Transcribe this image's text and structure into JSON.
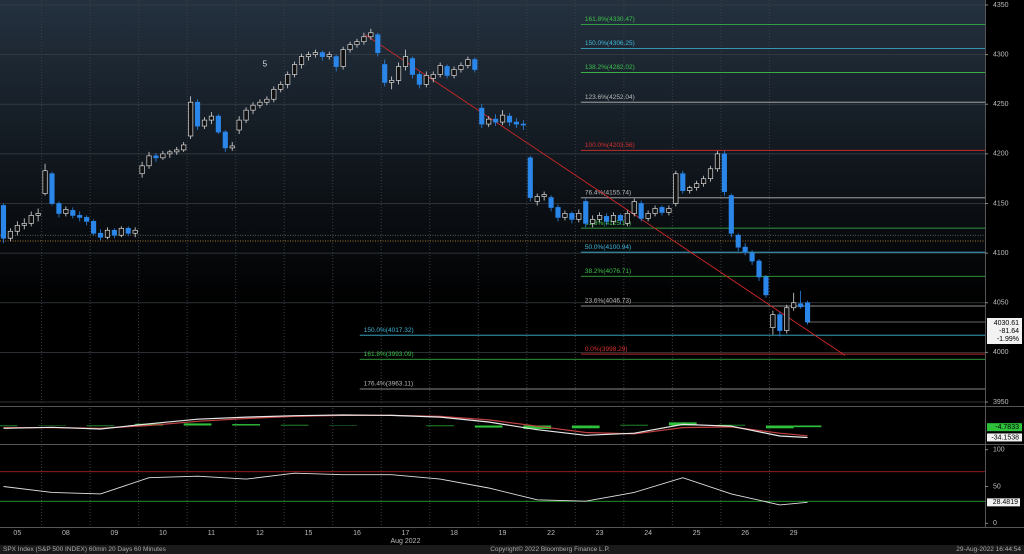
{
  "chart_data": {
    "type": "candlestick",
    "title": "SPX Index (S&P 500 INDEX) 60min 20 Days 60 Minutes",
    "source": "Copyright© 2022 Bloomberg Finance L.P.",
    "timestamp": "29-Aug-2022 16:44:54",
    "x_sublabel": "Aug 2022",
    "xlim": [
      -0.5,
      141.6
    ],
    "xticks": [
      {
        "value": 2,
        "label": "05"
      },
      {
        "value": 9,
        "label": "08"
      },
      {
        "value": 16,
        "label": "09"
      },
      {
        "value": 23,
        "label": "10"
      },
      {
        "value": 30,
        "label": "11"
      },
      {
        "value": 37,
        "label": "12"
      },
      {
        "value": 44,
        "label": "15"
      },
      {
        "value": 51,
        "label": "16"
      },
      {
        "value": 58,
        "label": "17"
      },
      {
        "value": 65,
        "label": "18"
      },
      {
        "value": 72,
        "label": "19"
      },
      {
        "value": 79,
        "label": "22"
      },
      {
        "value": 86,
        "label": "23"
      },
      {
        "value": 93,
        "label": "24"
      },
      {
        "value": 100,
        "label": "25"
      },
      {
        "value": 107,
        "label": "26"
      },
      {
        "value": 114,
        "label": "29"
      }
    ],
    "ylim": [
      3947,
      4355
    ],
    "yticks": [
      3950,
      4000,
      4050,
      4100,
      4150,
      4200,
      4250,
      4300,
      4350
    ],
    "grid": true,
    "up_color": "#d8d8d8",
    "down_color": "#2a86e8",
    "x": [
      0,
      1,
      2,
      3,
      4,
      5,
      6,
      7,
      8,
      9,
      10,
      11,
      12,
      13,
      14,
      15,
      16,
      17,
      18,
      19,
      20,
      21,
      22,
      23,
      24,
      25,
      26,
      27,
      28,
      29,
      30,
      31,
      32,
      33,
      34,
      35,
      36,
      37,
      38,
      39,
      40,
      41,
      42,
      43,
      44,
      45,
      46,
      47,
      48,
      49,
      50,
      51,
      52,
      53,
      54,
      55,
      56,
      57,
      58,
      59,
      60,
      61,
      62,
      63,
      64,
      65,
      66,
      67,
      68,
      69,
      70,
      71,
      72,
      73,
      74,
      75,
      76,
      77,
      78,
      79,
      80,
      81,
      82,
      83,
      84,
      85,
      86,
      87,
      88,
      89,
      90,
      91,
      92,
      93,
      94,
      95,
      96,
      97,
      98,
      99,
      100,
      101,
      102,
      103,
      104,
      105,
      106,
      107,
      108,
      109,
      110,
      111,
      112,
      113,
      114,
      115,
      116
    ],
    "ohlc": [
      [
        4148,
        4150,
        4110,
        4115
      ],
      [
        4115,
        4125,
        4112,
        4122
      ],
      [
        4122,
        4132,
        4118,
        4128
      ],
      [
        4128,
        4135,
        4124,
        4130
      ],
      [
        4130,
        4142,
        4127,
        4138
      ],
      [
        4138,
        4145,
        4132,
        4140
      ],
      [
        4160,
        4190,
        4158,
        4183
      ],
      [
        4180,
        4182,
        4148,
        4150
      ],
      [
        4150,
        4152,
        4136,
        4140
      ],
      [
        4140,
        4147,
        4137,
        4144
      ],
      [
        4143,
        4146,
        4135,
        4138
      ],
      [
        4138,
        4142,
        4132,
        4136
      ],
      [
        4136,
        4138,
        4128,
        4132
      ],
      [
        4132,
        4134,
        4118,
        4120
      ],
      [
        4120,
        4124,
        4113,
        4116
      ],
      [
        4116,
        4126,
        4114,
        4123
      ],
      [
        4123,
        4125,
        4115,
        4118
      ],
      [
        4118,
        4127,
        4116,
        4125
      ],
      [
        4125,
        4127,
        4117,
        4120
      ],
      [
        4120,
        4126,
        4116,
        4123
      ],
      [
        4180,
        4192,
        4176,
        4188
      ],
      [
        4188,
        4202,
        4185,
        4198
      ],
      [
        4198,
        4201,
        4192,
        4196
      ],
      [
        4196,
        4203,
        4194,
        4200
      ],
      [
        4200,
        4204,
        4196,
        4202
      ],
      [
        4202,
        4207,
        4199,
        4204
      ],
      [
        4204,
        4212,
        4202,
        4209
      ],
      [
        4218,
        4258,
        4215,
        4252
      ],
      [
        4252,
        4255,
        4224,
        4228
      ],
      [
        4228,
        4237,
        4225,
        4234
      ],
      [
        4234,
        4242,
        4230,
        4238
      ],
      [
        4238,
        4240,
        4220,
        4222
      ],
      [
        4222,
        4224,
        4202,
        4206
      ],
      [
        4206,
        4212,
        4203,
        4208
      ],
      [
        4224,
        4238,
        4220,
        4234
      ],
      [
        4234,
        4247,
        4231,
        4244
      ],
      [
        4244,
        4252,
        4240,
        4249
      ],
      [
        4249,
        4255,
        4246,
        4252
      ],
      [
        4252,
        4258,
        4249,
        4255
      ],
      [
        4255,
        4268,
        4252,
        4265
      ],
      [
        4265,
        4273,
        4262,
        4270
      ],
      [
        4270,
        4283,
        4266,
        4280
      ],
      [
        4280,
        4293,
        4277,
        4290
      ],
      [
        4290,
        4301,
        4286,
        4298
      ],
      [
        4298,
        4303,
        4294,
        4300
      ],
      [
        4300,
        4305,
        4297,
        4302
      ],
      [
        4302,
        4304,
        4294,
        4298
      ],
      [
        4298,
        4303,
        4295,
        4300
      ],
      [
        4298,
        4300,
        4283,
        4288
      ],
      [
        4288,
        4308,
        4285,
        4305
      ],
      [
        4305,
        4313,
        4302,
        4310
      ],
      [
        4310,
        4316,
        4307,
        4313
      ],
      [
        4313,
        4322,
        4310,
        4318
      ],
      [
        4318,
        4326,
        4315,
        4322
      ],
      [
        4320,
        4322,
        4298,
        4302
      ],
      [
        4290,
        4295,
        4268,
        4272
      ],
      [
        4272,
        4278,
        4265,
        4274
      ],
      [
        4274,
        4292,
        4270,
        4288
      ],
      [
        4288,
        4305,
        4284,
        4298
      ],
      [
        4296,
        4298,
        4276,
        4280
      ],
      [
        4280,
        4283,
        4266,
        4270
      ],
      [
        4270,
        4283,
        4267,
        4279
      ],
      [
        4276,
        4283,
        4272,
        4280
      ],
      [
        4280,
        4292,
        4277,
        4289
      ],
      [
        4288,
        4290,
        4276,
        4279
      ],
      [
        4279,
        4288,
        4276,
        4285
      ],
      [
        4285,
        4292,
        4282,
        4289
      ],
      [
        4289,
        4298,
        4286,
        4295
      ],
      [
        4295,
        4297,
        4282,
        4285
      ],
      [
        4246,
        4250,
        4226,
        4230
      ],
      [
        4230,
        4238,
        4227,
        4235
      ],
      [
        4235,
        4240,
        4228,
        4232
      ],
      [
        4232,
        4244,
        4229,
        4239
      ],
      [
        4238,
        4241,
        4228,
        4232
      ],
      [
        4232,
        4236,
        4226,
        4230
      ],
      [
        4230,
        4234,
        4224,
        4229
      ],
      [
        4196,
        4198,
        4152,
        4156
      ],
      [
        4152,
        4160,
        4148,
        4157
      ],
      [
        4157,
        4162,
        4153,
        4159
      ],
      [
        4156,
        4158,
        4142,
        4146
      ],
      [
        4146,
        4149,
        4132,
        4136
      ],
      [
        4136,
        4143,
        4133,
        4140
      ],
      [
        4140,
        4142,
        4130,
        4134
      ],
      [
        4134,
        4144,
        4131,
        4140
      ],
      [
        4152,
        4155,
        4126,
        4130
      ],
      [
        4130,
        4138,
        4126,
        4134
      ],
      [
        4134,
        4141,
        4131,
        4138
      ],
      [
        4137,
        4140,
        4128,
        4132
      ],
      [
        4132,
        4141,
        4129,
        4138
      ],
      [
        4138,
        4140,
        4129,
        4133
      ],
      [
        4130,
        4143,
        4127,
        4140
      ],
      [
        4140,
        4155,
        4137,
        4152
      ],
      [
        4150,
        4153,
        4132,
        4135
      ],
      [
        4135,
        4143,
        4132,
        4140
      ],
      [
        4140,
        4148,
        4137,
        4145
      ],
      [
        4146,
        4148,
        4138,
        4141
      ],
      [
        4141,
        4148,
        4138,
        4145
      ],
      [
        4150,
        4183,
        4147,
        4180
      ],
      [
        4180,
        4183,
        4160,
        4163
      ],
      [
        4163,
        4168,
        4160,
        4166
      ],
      [
        4166,
        4173,
        4163,
        4170
      ],
      [
        4170,
        4178,
        4167,
        4175
      ],
      [
        4175,
        4188,
        4172,
        4185
      ],
      [
        4185,
        4203,
        4182,
        4200
      ],
      [
        4200,
        4203,
        4158,
        4162
      ],
      [
        4158,
        4160,
        4116,
        4120
      ],
      [
        4118,
        4120,
        4102,
        4106
      ],
      [
        4106,
        4110,
        4098,
        4101
      ],
      [
        4100,
        4103,
        4088,
        4092
      ],
      [
        4092,
        4094,
        4072,
        4076
      ],
      [
        4076,
        4078,
        4055,
        4058
      ],
      [
        4025,
        4042,
        4018,
        4038
      ],
      [
        4038,
        4041,
        4016,
        4022
      ],
      [
        4022,
        4048,
        4019,
        4045
      ],
      [
        4045,
        4060,
        4042,
        4050
      ],
      [
        4049,
        4062,
        4044,
        4046
      ],
      [
        4050,
        4052,
        4028,
        4030.61
      ]
    ],
    "change": -81.64,
    "change_pct": {
      "value": -1.99,
      "label": "-1.99%"
    },
    "fib_levels": [
      {
        "value": 4330.47,
        "label": "161.8%(4330.47)",
        "color": "#3cc24a",
        "start": 83.3
      },
      {
        "value": 4306.25,
        "label": "150.0%(4306.25)",
        "color": "#3fb8d8",
        "start": 83.3
      },
      {
        "value": 4282.02,
        "label": "138.2%(4282.02)",
        "color": "#3cc24a",
        "start": 83.3
      },
      {
        "value": 4252.04,
        "label": "123.6%(4252.04)",
        "color": "#b8b8b8",
        "start": 83.3
      },
      {
        "value": 4203.56,
        "label": "100.0%(4203.56)",
        "color": "#d83030",
        "start": 83.3
      },
      {
        "value": 4155.74,
        "label": "76.4%(4155.74)",
        "color": "#b8b8b8",
        "start": 83.3
      },
      {
        "value": 4125.17,
        "label": "61.8%(4125.17)",
        "color": "#3cc24a",
        "start": 83.3
      },
      {
        "value": 4100.94,
        "label": "50.0%(4100.94)",
        "color": "#3fb8d8",
        "start": 83.3
      },
      {
        "value": 4076.71,
        "label": "38.2%(4076.71)",
        "color": "#3cc24a",
        "start": 83.3
      },
      {
        "value": 4046.73,
        "label": "23.6%(4046.73)",
        "color": "#b8b8b8",
        "start": 83.3
      },
      {
        "value": 3998.29,
        "label": "0.0%(3998.29)",
        "color": "#d83030",
        "start": 83.3
      },
      {
        "value": 4017.32,
        "label": "150.0%(4017.32)",
        "color": "#3fb8d8",
        "start": 51.4
      },
      {
        "value": 3993.09,
        "label": "161.8%(3993.09)",
        "color": "#3cc24a",
        "start": 51.4
      },
      {
        "value": 3963.11,
        "label": "176.4%(3963.11)",
        "color": "#b8b8b8",
        "start": 51.4
      }
    ],
    "ref_lines": [
      {
        "value": 4112.25,
        "color": "#e09a30"
      },
      {
        "value": 4118,
        "color": "#777777"
      }
    ],
    "trendline": {
      "x": [
        52.2,
        121.4
      ],
      "y": [
        4320,
        3997
      ],
      "color": "#d02828"
    },
    "annotations": [
      {
        "x": 37.7,
        "y": 4290,
        "text": "5"
      }
    ],
    "macd": {
      "x": [
        0,
        7,
        14,
        21,
        28,
        35,
        42,
        49,
        56,
        63,
        70,
        77,
        84,
        91,
        98,
        105,
        112,
        116
      ],
      "ylim": [
        -50,
        50
      ],
      "macd": [
        -8,
        -5,
        -10,
        5,
        18,
        24,
        28,
        30,
        29,
        24,
        10,
        -12,
        -28,
        -22,
        3,
        -2,
        -30,
        -34.1538
      ],
      "signal": [
        -6,
        -6,
        -8,
        0,
        12,
        20,
        26,
        29,
        29,
        26,
        16,
        -2,
        -20,
        -24,
        -6,
        -4,
        -22,
        -29.3705
      ],
      "hist": [
        -2,
        1,
        -2,
        5,
        6,
        4,
        2,
        1,
        0,
        -2,
        -6,
        -10,
        -8,
        2,
        9,
        2,
        -8,
        -4.7833
      ],
      "macd_color": "#e8e8e8",
      "signal_color": "#c04040",
      "hist_color": "#2ec03a"
    },
    "rsi": {
      "x": [
        0,
        7,
        14,
        21,
        28,
        35,
        42,
        49,
        56,
        63,
        70,
        77,
        84,
        91,
        98,
        105,
        112,
        116
      ],
      "values": [
        50,
        42,
        40,
        62,
        64,
        60,
        68,
        66,
        66,
        60,
        48,
        32,
        30,
        42,
        62,
        40,
        25,
        28.4819
      ],
      "ylim": [
        -5,
        105
      ],
      "yticks": [
        0,
        50,
        100
      ],
      "overbought": 70,
      "oversold": 30,
      "color": "#e0e0e0"
    }
  }
}
